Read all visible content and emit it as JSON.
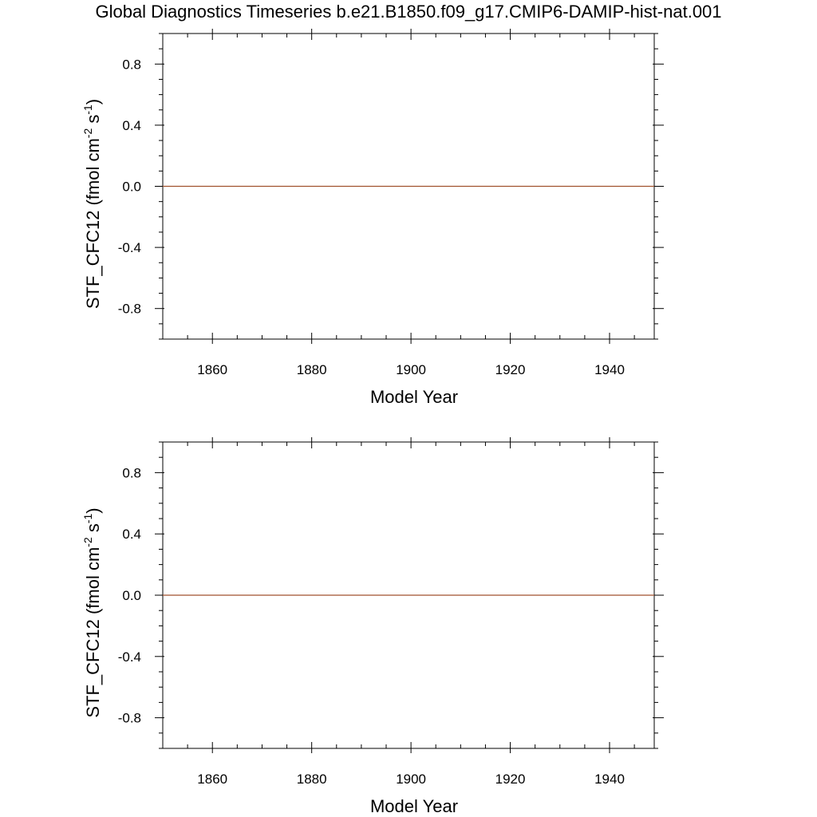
{
  "title": "Global Diagnostics Timeseries b.e21.B1850.f09_g17.CMIP6-DAMIP-hist-nat.001",
  "colors": {
    "series": "#a0522d",
    "axis": "#000000"
  },
  "chart_data": [
    {
      "type": "line",
      "xlabel": "Model Year",
      "ylabel_main": "STF_CFC12 (fmol cm",
      "ylabel_sup1": "-2",
      "ylabel_mid": " s",
      "ylabel_sup2": "-1",
      "ylabel_end": ")",
      "xlim": [
        1850,
        1949
      ],
      "ylim": [
        -1.0,
        1.0
      ],
      "xticks": [
        1860,
        1880,
        1900,
        1920,
        1940
      ],
      "xtick_labels": [
        "1860",
        "1880",
        "1900",
        "1920",
        "1940"
      ],
      "yticks": [
        0.8,
        0.4,
        0.0,
        -0.4,
        -0.8
      ],
      "ytick_labels": [
        "0.8",
        "0.4",
        "0.0",
        "-0.4",
        "-0.8"
      ],
      "grid": false,
      "series": [
        {
          "x": [
            1850,
            1949
          ],
          "y": [
            0.0,
            0.0
          ]
        }
      ]
    },
    {
      "type": "line",
      "xlabel": "Model Year",
      "ylabel_main": "STF_CFC12 (fmol cm",
      "ylabel_sup1": "-2",
      "ylabel_mid": " s",
      "ylabel_sup2": "-1",
      "ylabel_end": ")",
      "xlim": [
        1850,
        1949
      ],
      "ylim": [
        -1.0,
        1.0
      ],
      "xticks": [
        1860,
        1880,
        1900,
        1920,
        1940
      ],
      "xtick_labels": [
        "1860",
        "1880",
        "1900",
        "1920",
        "1940"
      ],
      "yticks": [
        0.8,
        0.4,
        0.0,
        -0.4,
        -0.8
      ],
      "ytick_labels": [
        "0.8",
        "0.4",
        "0.0",
        "-0.4",
        "-0.8"
      ],
      "grid": false,
      "series": [
        {
          "x": [
            1850,
            1949
          ],
          "y": [
            0.0,
            0.0
          ]
        }
      ]
    }
  ]
}
